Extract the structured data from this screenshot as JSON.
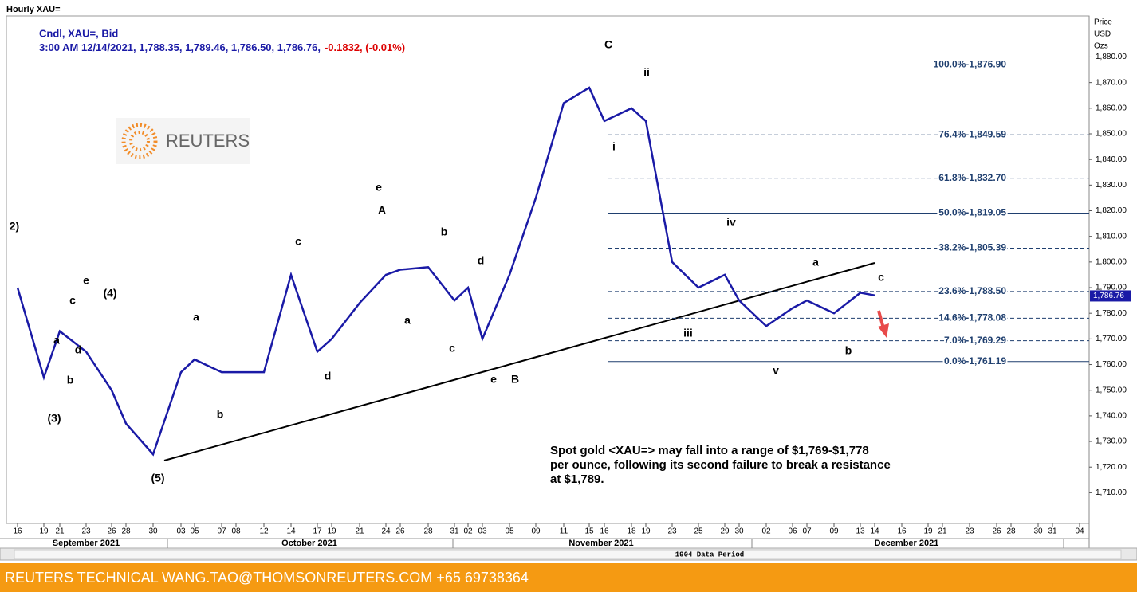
{
  "chart_data": {
    "type": "line",
    "window_title": "Hourly XAU=",
    "legend_line1": "Cndl, XAU=, Bid",
    "legend_line2": "3:00 AM 12/14/2021, 1,788.35, 1,789.46, 1,786.50, 1,786.76,",
    "legend_change": "-0.1832, (-0.01%)",
    "logo": "REUTERS",
    "y_axis_title": [
      "Price",
      "USD",
      "Ozs"
    ],
    "last_price": {
      "value": 1786.76,
      "label": "1,786.76"
    },
    "categories": [
      "16",
      "19",
      "21",
      "23",
      "26",
      "28",
      "30",
      "03",
      "05",
      "07",
      "08",
      "12",
      "14",
      "17",
      "19",
      "21",
      "24",
      "26",
      "28",
      "31",
      "02",
      "03",
      "05",
      "09",
      "11",
      "15",
      "16",
      "18",
      "19",
      "23",
      "25",
      "29",
      "30",
      "02",
      "06",
      "07",
      "09",
      "13",
      "14",
      "16",
      "19",
      "21",
      "23",
      "26",
      "28",
      "30",
      "31",
      "04"
    ],
    "months": [
      "September 2021",
      "October 2021",
      "November 2021",
      "December 2021"
    ],
    "period_label": "1904 Data Period",
    "series": [
      {
        "name": "XAU=",
        "color": "#1a1aa6",
        "values": [
          1790,
          1755,
          1773,
          1765,
          1750,
          1737,
          1725,
          1757,
          1762,
          1757,
          1757,
          1757,
          1795,
          1765,
          1770,
          1784,
          1795,
          1797,
          1798,
          1785,
          1790,
          1770,
          1795,
          1825,
          1862,
          1868,
          1855,
          1860,
          1855,
          1800,
          1790,
          1795,
          1785,
          1775,
          1782,
          1785,
          1780,
          1788,
          1787,
          null,
          null,
          null,
          null,
          null,
          null,
          null,
          null,
          null
        ]
      }
    ],
    "ylim": [
      1698,
      1896
    ],
    "yticks": [
      {
        "value": 1710,
        "label": "1,710.00"
      },
      {
        "value": 1720,
        "label": "1,720.00"
      },
      {
        "value": 1730,
        "label": "1,730.00"
      },
      {
        "value": 1740,
        "label": "1,740.00"
      },
      {
        "value": 1750,
        "label": "1,750.00"
      },
      {
        "value": 1760,
        "label": "1,760.00"
      },
      {
        "value": 1770,
        "label": "1,770.00"
      },
      {
        "value": 1780,
        "label": "1,780.00"
      },
      {
        "value": 1790,
        "label": "1,790.00"
      },
      {
        "value": 1800,
        "label": "1,800.00"
      },
      {
        "value": 1810,
        "label": "1,810.00"
      },
      {
        "value": 1820,
        "label": "1,820.00"
      },
      {
        "value": 1830,
        "label": "1,830.00"
      },
      {
        "value": 1840,
        "label": "1,840.00"
      },
      {
        "value": 1850,
        "label": "1,850.00"
      },
      {
        "value": 1860,
        "label": "1,860.00"
      },
      {
        "value": 1870,
        "label": "1,870.00"
      },
      {
        "value": 1880,
        "label": "1,880.00"
      }
    ],
    "fib_levels": [
      {
        "value": 1876.9,
        "label": "100.0%-1,876.90"
      },
      {
        "value": 1849.59,
        "label": "76.4%-1,849.59"
      },
      {
        "value": 1832.7,
        "label": "61.8%-1,832.70"
      },
      {
        "value": 1819.05,
        "label": "50.0%-1,819.05"
      },
      {
        "value": 1805.39,
        "label": "38.2%-1,805.39"
      },
      {
        "value": 1788.5,
        "label": "23.6%-1,788.50"
      },
      {
        "value": 1778.08,
        "label": "14.6%-1,778.08"
      },
      {
        "value": 1769.29,
        "label": "7.0%-1,769.29"
      },
      {
        "value": 1761.19,
        "label": "0.0%-1,761.19"
      }
    ],
    "wave_labels": [
      "2)",
      "(3)",
      "a",
      "b",
      "c",
      "d",
      "e",
      "(4)",
      "(5)",
      "a",
      "b",
      "c",
      "d",
      "e",
      "A",
      "a",
      "b",
      "c",
      "d",
      "e",
      "B",
      "C",
      "i",
      "ii",
      "iii",
      "iv",
      "v",
      "a",
      "b",
      "c"
    ],
    "annotation": [
      "Spot gold <XAU=> may fall into a range of $1,769-$1,778",
      "per ounce, following its second failure to break a resistance",
      "at $1,789."
    ],
    "footer": "REUTERS TECHNICAL  WANG.TAO@THOMSONREUTERS.COM  +65 69738364"
  }
}
